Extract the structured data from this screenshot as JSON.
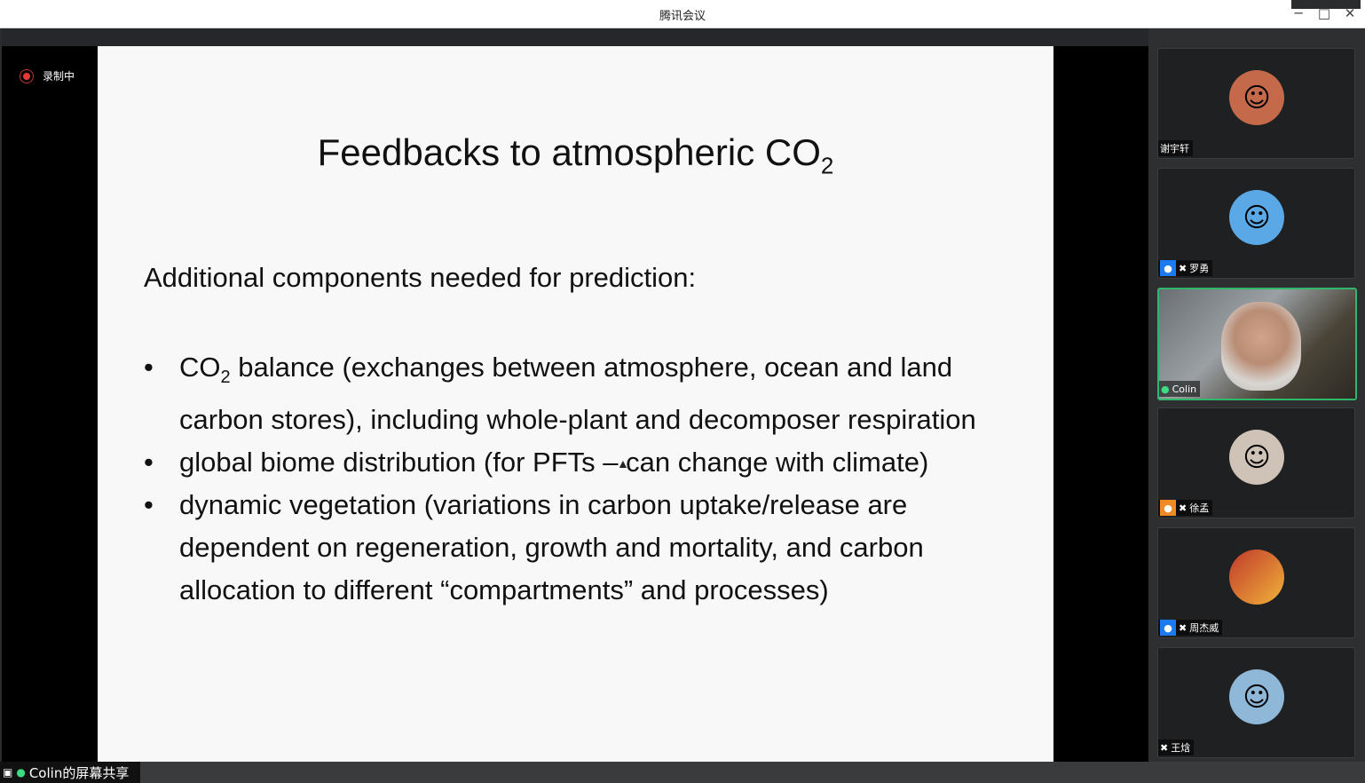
{
  "window": {
    "title": "腾讯会议"
  },
  "recording": {
    "label": "录制中"
  },
  "slide": {
    "title_main": "Feedbacks to atmospheric CO",
    "title_sub": "2",
    "lead": "Additional components needed for prediction:",
    "bullets": [
      {
        "pre": "CO",
        "sub": "2",
        "post": " balance (exchanges between atmosphere, ocean and land carbon stores), including whole-plant and decomposer respiration"
      },
      {
        "pre": "global biome distribution (for PFTs – can change with climate)",
        "sub": "",
        "post": ""
      },
      {
        "pre": "dynamic vegetation (variations in carbon uptake/release are dependent on regeneration, growth and mortality, and carbon allocation to different “compartments” and processes)",
        "sub": "",
        "post": ""
      }
    ]
  },
  "share_label": "Colin的屏幕共享",
  "participants": [
    {
      "name": "谢宇轩",
      "badge": "",
      "mic": "none",
      "active": false
    },
    {
      "name": "罗勇",
      "badge": "blue",
      "mic": "muted",
      "active": false
    },
    {
      "name": "Colin",
      "badge": "",
      "mic": "on",
      "active": true
    },
    {
      "name": "徐孟",
      "badge": "orange",
      "mic": "muted",
      "active": false
    },
    {
      "name": "周杰威",
      "badge": "blue",
      "mic": "muted",
      "active": false
    },
    {
      "name": "王焓",
      "badge": "",
      "mic": "muted",
      "active": false
    }
  ]
}
